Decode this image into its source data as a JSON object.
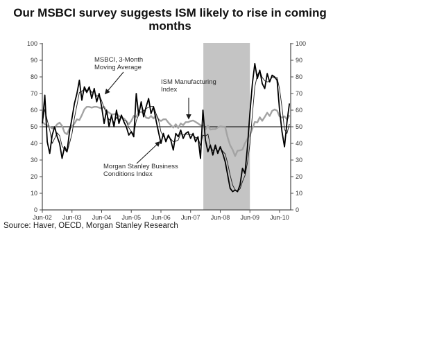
{
  "title": "Our MSBCI survey suggests ISM likely to rise in coming months",
  "source": "Source: Haver, OECD, Morgan Stanley Research",
  "labels": {
    "msbci_ma_annotation": "MSBCI, 3-Month Moving Average",
    "ism_annotation": "ISM Manufacturing Index",
    "msbci_annotation": "Morgan Stanley Business Conditions Index"
  },
  "colors": {
    "msbci_line": "#000000",
    "ma_line": "#1a1a1a",
    "ism_line": "#a3a3a3",
    "recession_band": "#c4c4c4",
    "axis": "#4a4a4a",
    "reference_line": "#000000",
    "tick_text": "#333333"
  },
  "chart_data": {
    "type": "line",
    "title": "Our MSBCI survey suggests ISM likely to rise in coming months",
    "x_start": "Jun-02",
    "x_frequency": "monthly",
    "x_tick_labels": [
      "Jun-02",
      "Jun-03",
      "Jun-04",
      "Jun-05",
      "Jun-06",
      "Jun-07",
      "Jun-08",
      "Jun-09",
      "Jun-10"
    ],
    "y_tick_labels": [
      "0",
      "10",
      "20",
      "30",
      "40",
      "50",
      "60",
      "70",
      "80",
      "90",
      "100"
    ],
    "y_axis": {
      "min": 0,
      "max": 100,
      "step": 10,
      "dual_axis": true
    },
    "reference_line_value": 50,
    "recession_band": {
      "from": "Dec-07",
      "to": "Jun-09",
      "from_index": 66,
      "to_index": 84
    },
    "series": [
      {
        "name": "Morgan Stanley Business Conditions Index",
        "style": "thick-black",
        "values": [
          52,
          69,
          41,
          34,
          45,
          50,
          44,
          40,
          31,
          38,
          35,
          47,
          55,
          64,
          70,
          78,
          66,
          74,
          71,
          74,
          67,
          73,
          65,
          70,
          62,
          52,
          60,
          50,
          57,
          50,
          60,
          52,
          57,
          53,
          50,
          45,
          47,
          44,
          70,
          57,
          65,
          56,
          62,
          67,
          58,
          62,
          54,
          47,
          40,
          46,
          41,
          45,
          42,
          36,
          46,
          44,
          48,
          43,
          46,
          47,
          43,
          46,
          41,
          44,
          31,
          60,
          42,
          35,
          39,
          33,
          39,
          34,
          38,
          34,
          29,
          21,
          13,
          11,
          12,
          11,
          15,
          25,
          22,
          38,
          58,
          76,
          88,
          79,
          84,
          76,
          73,
          82,
          77,
          81,
          80,
          78,
          60,
          47,
          38,
          53,
          64
        ]
      },
      {
        "name": "MSBCI, 3-Month Moving Average",
        "style": "thin-black",
        "derived": "3-month moving average of Morgan Stanley Business Conditions Index"
      },
      {
        "name": "ISM Manufacturing Index",
        "style": "thick-gray",
        "values": [
          53,
          51.5,
          51,
          50,
          49,
          49.5,
          51.5,
          52.5,
          50.5,
          46.5,
          45.5,
          49,
          50,
          52,
          54.5,
          54,
          57,
          60.5,
          62,
          62,
          61.5,
          62,
          62,
          61.5,
          61,
          62,
          59.5,
          58.5,
          57.5,
          57.5,
          58,
          56.5,
          55.5,
          55,
          53.5,
          51.5,
          53.5,
          56.5,
          56,
          58.5,
          59,
          58,
          55.5,
          55,
          56.5,
          55,
          57,
          54.5,
          53.5,
          54.5,
          54.5,
          52.5,
          51,
          49.5,
          51.5,
          49.3,
          52,
          51,
          52.8,
          52.8,
          53.4,
          53.8,
          52.9,
          52,
          50.9,
          50.8,
          48.4,
          50.7,
          48.3,
          48.6,
          48.6,
          49.6,
          50.2,
          50,
          49.9,
          43.5,
          38.9,
          36.2,
          32.4,
          35.6,
          35.8,
          36.3,
          40.1,
          42.8,
          44.8,
          48.9,
          52.9,
          52.6,
          55.7,
          53.6,
          55.9,
          58.4,
          56.5,
          59.6,
          60.4,
          59.7,
          56.2,
          55.5,
          56.3,
          54.4,
          56.9
        ]
      }
    ],
    "legend_position": "none (in-plot text annotations with arrows)",
    "grid": "off"
  }
}
